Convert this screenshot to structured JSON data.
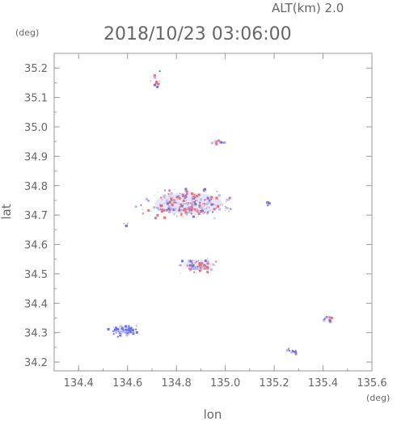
{
  "header": {
    "alt_label": "ALT(km) 2.0",
    "datetime": "2018/10/23 03:06:00",
    "y_unit": "(deg)",
    "x_unit": "(deg)"
  },
  "chart_data": {
    "type": "scatter",
    "xlabel": "lon",
    "ylabel": "lat",
    "xlim": [
      134.3,
      135.6
    ],
    "ylim": [
      34.17,
      35.25
    ],
    "xticks": [
      "134.4",
      "134.6",
      "134.8",
      "135.0",
      "135.2",
      "135.4",
      "135.6"
    ],
    "yticks": [
      "34.2",
      "34.3",
      "34.4",
      "34.5",
      "34.6",
      "34.7",
      "34.8",
      "34.9",
      "35.0",
      "35.1",
      "35.2"
    ],
    "grid": false,
    "colors": {
      "positive": "#e8707a",
      "negative": "#6d72e6",
      "light": "#b8b8f5"
    },
    "clusters": [
      {
        "name": "north-patch",
        "x": 134.72,
        "y": 35.16
      },
      {
        "name": "central-north",
        "x": 134.97,
        "y": 34.95
      },
      {
        "name": "main-band",
        "x": 134.85,
        "y": 34.74
      },
      {
        "name": "west-dot",
        "x": 134.59,
        "y": 34.67
      },
      {
        "name": "center-south",
        "x": 134.89,
        "y": 34.53
      },
      {
        "name": "east-dot",
        "x": 135.17,
        "y": 34.74
      },
      {
        "name": "southwest-patch",
        "x": 134.59,
        "y": 34.31
      },
      {
        "name": "southeast-dot",
        "x": 135.42,
        "y": 34.35
      },
      {
        "name": "south-streak",
        "x": 135.27,
        "y": 34.24
      }
    ]
  }
}
